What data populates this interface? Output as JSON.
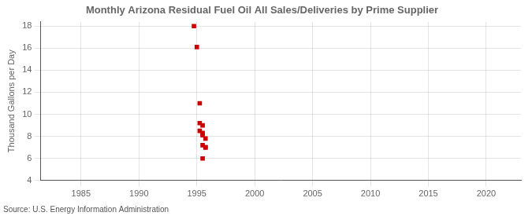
{
  "chart_data": {
    "type": "scatter",
    "title": "Monthly Arizona Residual Fuel Oil All Sales/Deliveries by Prime Supplier",
    "y_label": "Thousand Gallons per Day",
    "annotations": [
      "Source: U.S. Energy Information Administration"
    ],
    "x": [
      1994.75,
      1995.0,
      1995.25,
      1995.25,
      1995.5,
      1995.25,
      1995.5,
      1995.5,
      1995.75,
      1995.5,
      1995.75,
      1995.75,
      1995.5
    ],
    "values": [
      18.0,
      16.1,
      11.0,
      9.2,
      9.0,
      8.5,
      8.3,
      8.1,
      7.8,
      7.2,
      7.0,
      7.0,
      6.0
    ],
    "color": "#cc0000",
    "marker": "square",
    "xlim": [
      1981.5,
      2023
    ],
    "ylim": [
      4,
      18.4
    ],
    "xticks": [
      1985,
      1990,
      1995,
      2000,
      2005,
      2010,
      2015,
      2020
    ],
    "yticks": [
      4,
      6,
      8,
      10,
      12,
      14,
      16,
      18
    ],
    "grid": true
  }
}
